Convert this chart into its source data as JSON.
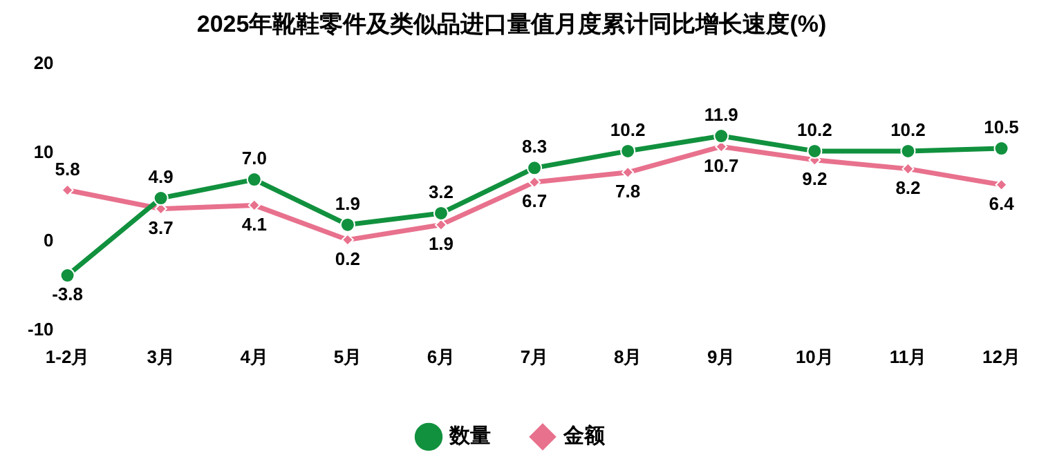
{
  "chart_data": {
    "type": "line",
    "title": "2025年靴鞋零件及类似品进口量值月度累计同比增长速度(%)",
    "categories": [
      "1-2月",
      "3月",
      "4月",
      "5月",
      "6月",
      "7月",
      "8月",
      "9月",
      "10月",
      "11月",
      "12月"
    ],
    "series": [
      {
        "name": "数量",
        "color": "#11913e",
        "values": [
          -3.8,
          4.9,
          7.0,
          1.9,
          3.2,
          8.3,
          10.2,
          11.9,
          10.2,
          10.2,
          10.5
        ],
        "value_labels": [
          "-3.8",
          "4.9",
          "7.0",
          "1.9",
          "3.2",
          "8.3",
          "10.2",
          "11.9",
          "10.2",
          "10.2",
          "10.5"
        ],
        "marker": "circle"
      },
      {
        "name": "金额",
        "color": "#e8718d",
        "values": [
          5.8,
          3.7,
          4.1,
          0.2,
          1.9,
          6.7,
          7.8,
          10.7,
          9.2,
          8.2,
          6.4
        ],
        "value_labels": [
          "5.8",
          "3.7",
          "4.1",
          "0.2",
          "1.9",
          "6.7",
          "7.8",
          "10.7",
          "9.2",
          "8.2",
          "6.4"
        ],
        "marker": "diamond"
      }
    ],
    "ylim": [
      -10,
      20
    ],
    "yticks": [
      -10,
      0,
      10,
      20
    ],
    "grid": false,
    "legend": "bottom",
    "line_style": "solid"
  }
}
